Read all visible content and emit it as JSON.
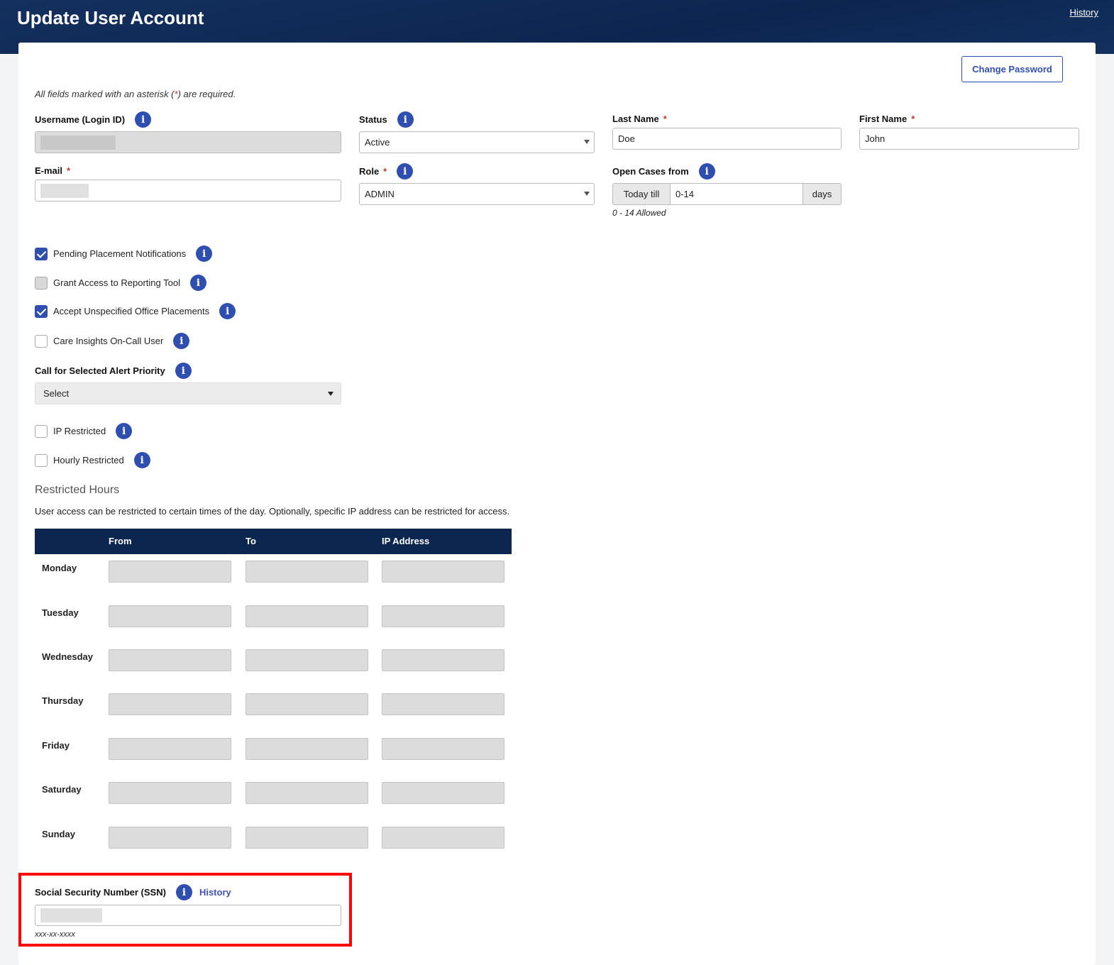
{
  "header": {
    "title": "Update User Account",
    "history_link": "History"
  },
  "change_password": "Change Password",
  "required_note_pre": "All fields marked with an asterisk (",
  "required_note_star": "*",
  "required_note_post": ") are required.",
  "fields": {
    "username": {
      "label": "Username (Login ID)"
    },
    "email": {
      "label": "E-mail"
    },
    "status": {
      "label": "Status",
      "value": "Active"
    },
    "role": {
      "label": "Role",
      "value": "ADMIN"
    },
    "last_name": {
      "label": "Last Name",
      "value": "Doe"
    },
    "first_name": {
      "label": "First Name",
      "value": "John"
    },
    "open_cases": {
      "label": "Open Cases from",
      "prefix": "Today till",
      "value": "0-14",
      "suffix": "days",
      "hint": "0 - 14 Allowed"
    }
  },
  "checkboxes": [
    {
      "label": "Pending Placement Notifications",
      "checked": true
    },
    {
      "label": "Grant Access to Reporting Tool",
      "checked": false,
      "disabled": true
    },
    {
      "label": "Accept Unspecified Office Placements",
      "checked": true
    },
    {
      "label": "Care Insights On-Call User",
      "checked": false
    }
  ],
  "alert_priority": {
    "label": "Call for Selected Alert Priority",
    "value": "Select"
  },
  "restrictions": [
    {
      "label": "IP Restricted",
      "checked": false
    },
    {
      "label": "Hourly Restricted",
      "checked": false
    }
  ],
  "restricted_hours": {
    "title": "Restricted Hours",
    "description": "User access can be restricted to certain times of the day. Optionally, specific IP address can be restricted for access.",
    "columns": [
      "From",
      "To",
      "IP Address"
    ],
    "days": [
      "Monday",
      "Tuesday",
      "Wednesday",
      "Thursday",
      "Friday",
      "Saturday",
      "Sunday"
    ]
  },
  "ssn": {
    "label": "Social Security Number (SSN)",
    "history_link": "History",
    "hint": "xxx-xx-xxxx"
  },
  "colors": {
    "header": "#0d2650",
    "accent": "#2f4fb0",
    "highlight": "#ff0000"
  }
}
